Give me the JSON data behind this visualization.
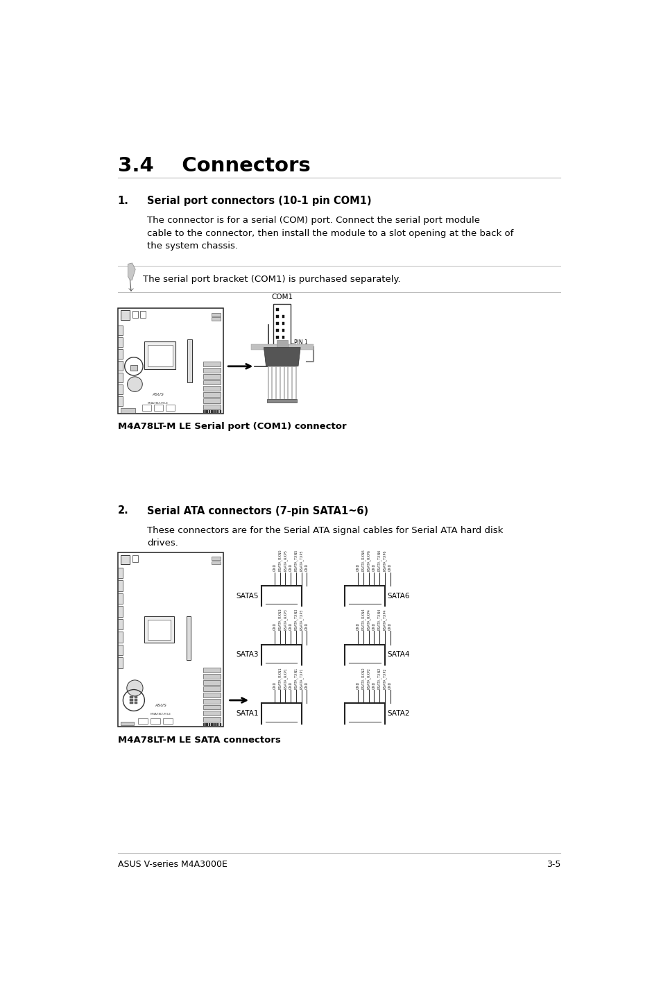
{
  "bg_color": "#ffffff",
  "page_width": 9.54,
  "page_height": 14.38,
  "title": "3.4    Connectors",
  "section1_num": "1.",
  "section1_heading": "Serial port connectors (10-1 pin COM1)",
  "section1_body": "The connector is for a serial (COM) port. Connect the serial port module\ncable to the connector, then install the module to a slot opening at the back of\nthe system chassis.",
  "note_text": "The serial port bracket (COM1) is purchased separately.",
  "caption1": "M4A78LT-M LE Serial port (COM1) connector",
  "section2_num": "2.",
  "section2_heading": "Serial ATA connectors (7-pin SATA1~6)",
  "section2_body": "These connectors are for the Serial ATA signal cables for Serial ATA hard disk\ndrives.",
  "caption2": "M4A78LT-M LE SATA connectors",
  "footer_left": "ASUS V-series M4A3000E",
  "footer_right": "3-5",
  "com1_label": "COM1",
  "pin1_label": "PIN 1",
  "sata_pin_labels_5": [
    "GND",
    "RSATA_RXN5",
    "RSATA_RXP5",
    "GND",
    "RSATA_TXN5",
    "RSATA_TXP5",
    "GND"
  ],
  "sata_pin_labels_6": [
    "GND",
    "RSATA_RXN6",
    "RSATA_RXP6",
    "GND",
    "RSATA_TXN6",
    "RSATA_TXP6",
    "GND"
  ],
  "sata_pin_labels_3": [
    "GND",
    "RSATA_RXN3",
    "RSATA_RXP3",
    "GND",
    "RSATA_TXN3",
    "RSATA_TXP3",
    "GND"
  ],
  "sata_pin_labels_4": [
    "GND",
    "RSATA_RXN4",
    "RSATA_RXP4",
    "GND",
    "RSATA_TXN4",
    "RSATA_TXP4",
    "GND"
  ],
  "sata_pin_labels_1": [
    "GND",
    "RSATA_RXN1",
    "RSATA_RXP1",
    "GND",
    "RSATA_TXN1",
    "RSATA_TXP1",
    "GND"
  ],
  "sata_pin_labels_2": [
    "GND",
    "RSATA_RXN2",
    "RSATA_RXP2",
    "GND",
    "RSATA_TXN2",
    "RSATA_TXP2",
    "GND"
  ]
}
